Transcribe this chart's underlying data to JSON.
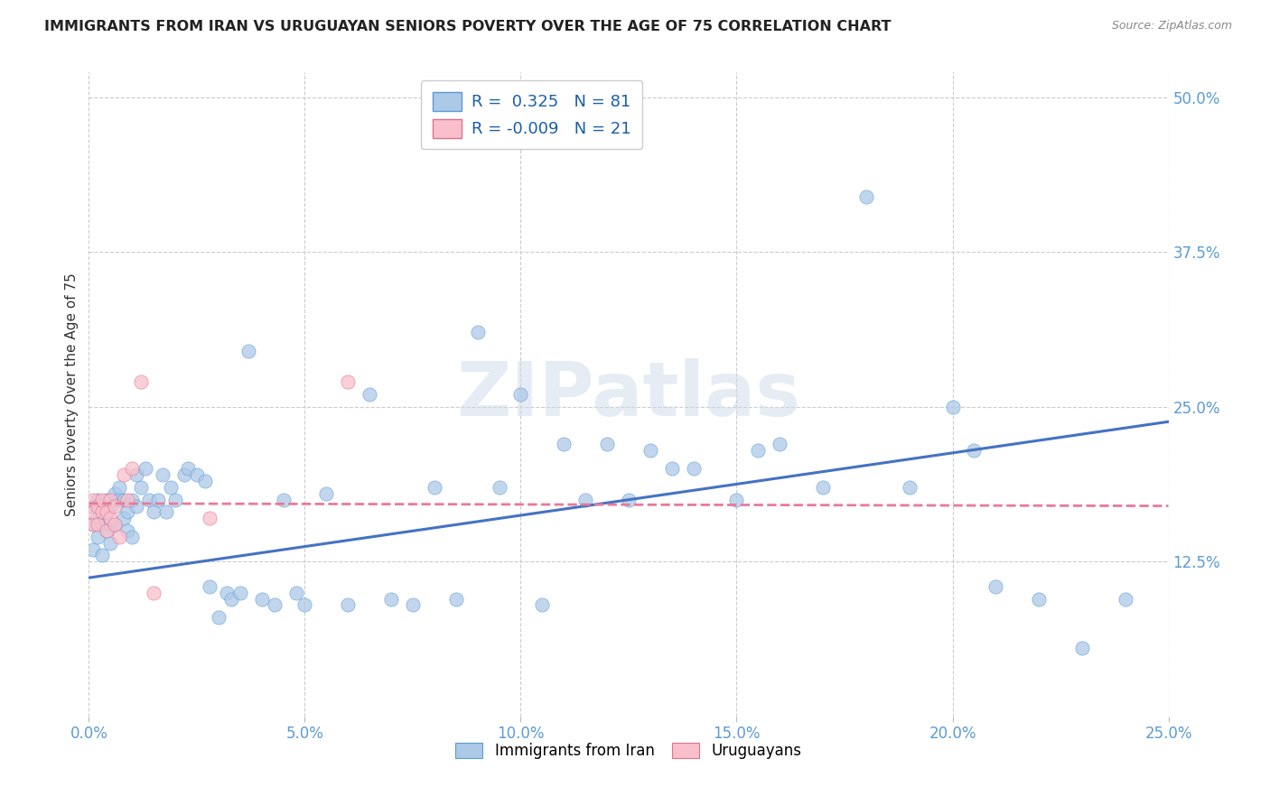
{
  "title": "IMMIGRANTS FROM IRAN VS URUGUAYAN SENIORS POVERTY OVER THE AGE OF 75 CORRELATION CHART",
  "source": "Source: ZipAtlas.com",
  "ylabel": "Seniors Poverty Over the Age of 75",
  "x_tick_labels": [
    "0.0%",
    "5.0%",
    "10.0%",
    "15.0%",
    "20.0%",
    "25.0%"
  ],
  "x_tick_values": [
    0.0,
    0.05,
    0.1,
    0.15,
    0.2,
    0.25
  ],
  "y_tick_labels": [
    "12.5%",
    "25.0%",
    "37.5%",
    "50.0%"
  ],
  "y_tick_values": [
    0.125,
    0.25,
    0.375,
    0.5
  ],
  "xlim": [
    0.0,
    0.25
  ],
  "ylim": [
    0.0,
    0.52
  ],
  "legend_entries": [
    {
      "label": "Immigrants from Iran",
      "color": "#adc9e8",
      "edge": "#5b9bd5",
      "r": " 0.325",
      "n": "81"
    },
    {
      "label": "Uruguayans",
      "color": "#f9c0cb",
      "edge": "#e07090",
      "r": "-0.009",
      "n": "21"
    }
  ],
  "blue_scatter_x": [
    0.001,
    0.001,
    0.001,
    0.002,
    0.002,
    0.002,
    0.003,
    0.003,
    0.003,
    0.004,
    0.004,
    0.004,
    0.005,
    0.005,
    0.005,
    0.006,
    0.006,
    0.007,
    0.007,
    0.008,
    0.008,
    0.009,
    0.009,
    0.01,
    0.01,
    0.011,
    0.011,
    0.012,
    0.013,
    0.014,
    0.015,
    0.016,
    0.017,
    0.018,
    0.019,
    0.02,
    0.022,
    0.023,
    0.025,
    0.027,
    0.028,
    0.03,
    0.032,
    0.033,
    0.035,
    0.037,
    0.04,
    0.043,
    0.045,
    0.048,
    0.05,
    0.055,
    0.06,
    0.065,
    0.07,
    0.075,
    0.08,
    0.085,
    0.09,
    0.095,
    0.1,
    0.105,
    0.11,
    0.115,
    0.12,
    0.125,
    0.13,
    0.135,
    0.14,
    0.15,
    0.155,
    0.16,
    0.17,
    0.18,
    0.19,
    0.2,
    0.205,
    0.21,
    0.22,
    0.23,
    0.24
  ],
  "blue_scatter_y": [
    0.135,
    0.155,
    0.17,
    0.145,
    0.16,
    0.175,
    0.13,
    0.155,
    0.165,
    0.15,
    0.165,
    0.175,
    0.14,
    0.155,
    0.17,
    0.155,
    0.18,
    0.175,
    0.185,
    0.16,
    0.175,
    0.15,
    0.165,
    0.145,
    0.175,
    0.17,
    0.195,
    0.185,
    0.2,
    0.175,
    0.165,
    0.175,
    0.195,
    0.165,
    0.185,
    0.175,
    0.195,
    0.2,
    0.195,
    0.19,
    0.105,
    0.08,
    0.1,
    0.095,
    0.1,
    0.295,
    0.095,
    0.09,
    0.175,
    0.1,
    0.09,
    0.18,
    0.09,
    0.26,
    0.095,
    0.09,
    0.185,
    0.095,
    0.31,
    0.185,
    0.26,
    0.09,
    0.22,
    0.175,
    0.22,
    0.175,
    0.215,
    0.2,
    0.2,
    0.175,
    0.215,
    0.22,
    0.185,
    0.42,
    0.185,
    0.25,
    0.215,
    0.105,
    0.095,
    0.055,
    0.095
  ],
  "pink_scatter_x": [
    0.001,
    0.001,
    0.001,
    0.002,
    0.002,
    0.003,
    0.003,
    0.004,
    0.004,
    0.005,
    0.005,
    0.006,
    0.006,
    0.007,
    0.008,
    0.009,
    0.01,
    0.012,
    0.015,
    0.028,
    0.06
  ],
  "pink_scatter_y": [
    0.155,
    0.165,
    0.175,
    0.155,
    0.17,
    0.165,
    0.175,
    0.15,
    0.165,
    0.16,
    0.175,
    0.155,
    0.17,
    0.145,
    0.195,
    0.175,
    0.2,
    0.27,
    0.1,
    0.16,
    0.27
  ],
  "blue_line": {
    "x0": 0.0,
    "x1": 0.25,
    "y0": 0.112,
    "y1": 0.238
  },
  "pink_line": {
    "x0": 0.0,
    "x1": 0.25,
    "y0": 0.172,
    "y1": 0.17
  },
  "line_color_blue": "#4472c4",
  "line_color_pink": "#e87a99",
  "grid_color": "#cccccc",
  "bg_color": "#ffffff",
  "watermark": "ZIPatlas",
  "watermark_color": "#ccdaea"
}
